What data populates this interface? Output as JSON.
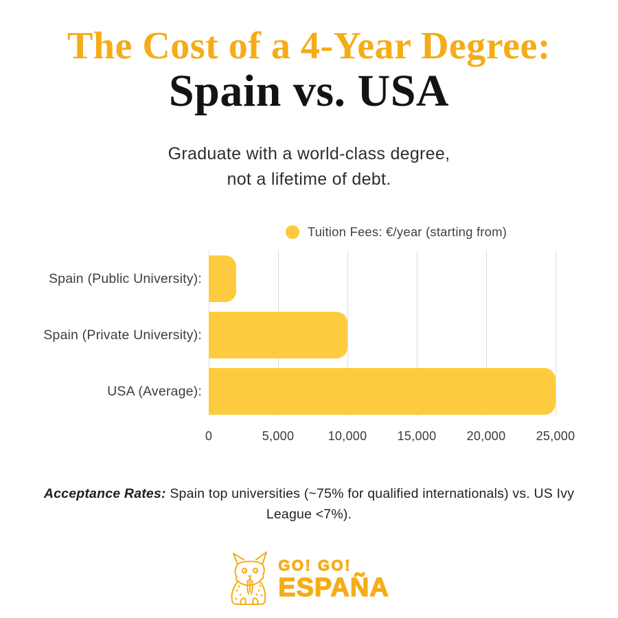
{
  "header": {
    "title_line1": "The Cost of a 4-Year Degree:",
    "title_line2": "Spain vs. USA",
    "subtitle_line1": "Graduate with a world-class degree,",
    "subtitle_line2": "not a lifetime of debt."
  },
  "legend": {
    "label": "Tuition Fees: €/year (starting from)",
    "dot_color": "#FCC93F"
  },
  "chart_data": {
    "type": "bar",
    "orientation": "horizontal",
    "title": "",
    "categories": [
      "Spain (Public University):",
      "Spain (Private University):",
      "USA (Average):"
    ],
    "series": [
      {
        "name": "Tuition Fees: €/year (starting from)",
        "values": [
          2000,
          10000,
          25000
        ]
      }
    ],
    "xlabel": "",
    "ylabel": "",
    "xlim": [
      0,
      25000
    ],
    "xticks": [
      0,
      5000,
      10000,
      15000,
      20000,
      25000
    ],
    "xtick_labels": [
      "0",
      "5,000",
      "10,000",
      "15,000",
      "20,000",
      "25,000"
    ],
    "grid": true,
    "legend_position": "top",
    "bar_color": "#FFCB3E"
  },
  "note": {
    "label": "Acceptance Rates:",
    "text": " Spain top universities (~75% for qualified internationals) vs. US Ivy League <7%)."
  },
  "footer_logo": {
    "line1": "GO! GO!",
    "line2": "ESPAÑA",
    "color": "#F5AC17",
    "mascot": "lynx-mascot-icon"
  },
  "colors": {
    "background": "#FFFFFF",
    "title_gold": "#F5AC17",
    "title_black": "#131313",
    "bar_yellow": "#FFCB3E",
    "gridline_gray": "#DDDDDD"
  }
}
